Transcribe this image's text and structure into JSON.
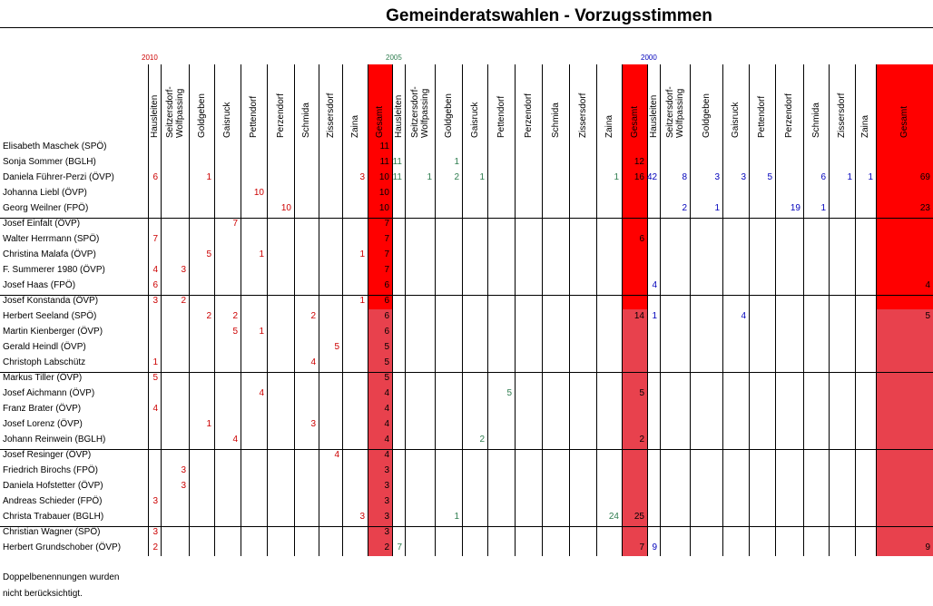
{
  "title": "Gemeinderatswahlen - Vorzugsstimmen",
  "colors": {
    "y2010": "#cc0000",
    "y2005": "#2e7d4f",
    "y2000": "#0000bb",
    "total_dark": "#ff0000",
    "total_light": "#e8414d"
  },
  "blocks": [
    {
      "year": "2010",
      "color_key": "y2010",
      "columns": [
        "Hausleiten",
        "Seitzersdorf-\nWolfpassing",
        "Goldgeben",
        "Gaisruck",
        "Pettendorf",
        "Perzendorf",
        "Schmida",
        "Zissersdorf",
        "Zaina",
        "Gesamt"
      ]
    },
    {
      "year": "2005",
      "color_key": "y2005",
      "columns": [
        "Hausleiten",
        "Seitzersdorf-\nWolfpassing",
        "Goldgeben",
        "Gaisruck",
        "Pettendorf",
        "Perzendorf",
        "Schmida",
        "Zissersdorf",
        "Zaina",
        "Gesamt"
      ]
    },
    {
      "year": "2000",
      "color_key": "y2000",
      "columns": [
        "Hausleiten",
        "Seitzersdorf-\nWolfpassing",
        "Goldgeben",
        "Gaisruck",
        "Pettendorf",
        "Perzendorf",
        "Schmida",
        "Zissersdorf",
        "Zaina",
        "Gesamt"
      ]
    }
  ],
  "rows": [
    {
      "name": "Elisabeth Maschek (SPÖ)",
      "y2010": [
        "",
        "",
        "",
        "",
        "",
        "",
        "",
        "",
        "",
        "11"
      ],
      "y2005": [
        "",
        "",
        "",
        "",
        "",
        "",
        "",
        "",
        "",
        ""
      ],
      "y2000": [
        "",
        "",
        "",
        "",
        "",
        "",
        "",
        "",
        "",
        ""
      ]
    },
    {
      "name": "Sonja Sommer (BGLH)",
      "y2010": [
        "",
        "",
        "",
        "",
        "",
        "",
        "",
        "",
        "",
        "11"
      ],
      "y2005": [
        "11",
        "",
        "1",
        "",
        "",
        "",
        "",
        "",
        "",
        "12"
      ],
      "y2000": [
        "",
        "",
        "",
        "",
        "",
        "",
        "",
        "",
        "",
        ""
      ]
    },
    {
      "name": "Daniela Führer-Perzi (ÖVP)",
      "y2010": [
        "6",
        "",
        "1",
        "",
        "",
        "",
        "",
        "",
        "3",
        "10"
      ],
      "y2005": [
        "11",
        "1",
        "2",
        "1",
        "",
        "",
        "",
        "",
        "1",
        "16"
      ],
      "y2000": [
        "42",
        "8",
        "3",
        "3",
        "5",
        "",
        "6",
        "1",
        "1",
        "69"
      ]
    },
    {
      "name": "Johanna Liebl (ÖVP)",
      "y2010": [
        "",
        "",
        "",
        "",
        "10",
        "",
        "",
        "",
        "",
        "10"
      ],
      "y2005": [
        "",
        "",
        "",
        "",
        "",
        "",
        "",
        "",
        "",
        ""
      ],
      "y2000": [
        "",
        "",
        "",
        "",
        "",
        "",
        "",
        "",
        "",
        ""
      ]
    },
    {
      "name": "Georg Weilner (FPÖ)",
      "y2010": [
        "",
        "",
        "",
        "",
        "",
        "10",
        "",
        "",
        "",
        "10"
      ],
      "y2005": [
        "",
        "",
        "",
        "",
        "",
        "",
        "",
        "",
        "",
        ""
      ],
      "y2000": [
        "",
        "2",
        "1",
        "",
        "",
        "19",
        "1",
        "",
        "",
        "23"
      ]
    },
    {
      "name": "Josef Einfalt (ÖVP)",
      "y2010": [
        "",
        "",
        "",
        "7",
        "",
        "",
        "",
        "",
        "",
        "7"
      ],
      "y2005": [
        "",
        "",
        "",
        "",
        "",
        "",
        "",
        "",
        "",
        ""
      ],
      "y2000": [
        "",
        "",
        "",
        "",
        "",
        "",
        "",
        "",
        "",
        ""
      ]
    },
    {
      "name": "Walter Herrmann (SPÖ)",
      "y2010": [
        "7",
        "",
        "",
        "",
        "",
        "",
        "",
        "",
        "",
        "7"
      ],
      "y2005": [
        "",
        "",
        "",
        "",
        "",
        "",
        "",
        "",
        "",
        "6"
      ],
      "y2000": [
        "",
        "",
        "",
        "",
        "",
        "",
        "",
        "",
        "",
        ""
      ]
    },
    {
      "name": "Christina Malafa (ÖVP)",
      "y2010": [
        "",
        "",
        "5",
        "",
        "1",
        "",
        "",
        "",
        "1",
        "7"
      ],
      "y2005": [
        "",
        "",
        "",
        "",
        "",
        "",
        "",
        "",
        "",
        ""
      ],
      "y2000": [
        "",
        "",
        "",
        "",
        "",
        "",
        "",
        "",
        "",
        ""
      ]
    },
    {
      "name": "F. Summerer 1980 (ÖVP)",
      "y2010": [
        "4",
        "3",
        "",
        "",
        "",
        "",
        "",
        "",
        "",
        "7"
      ],
      "y2005": [
        "",
        "",
        "",
        "",
        "",
        "",
        "",
        "",
        "",
        ""
      ],
      "y2000": [
        "",
        "",
        "",
        "",
        "",
        "",
        "",
        "",
        "",
        ""
      ]
    },
    {
      "name": "Josef Haas (FPÖ)",
      "y2010": [
        "6",
        "",
        "",
        "",
        "",
        "",
        "",
        "",
        "",
        "6"
      ],
      "y2005": [
        "",
        "",
        "",
        "",
        "",
        "",
        "",
        "",
        "",
        ""
      ],
      "y2000": [
        "4",
        "",
        "",
        "",
        "",
        "",
        "",
        "",
        "",
        "4"
      ]
    },
    {
      "name": "Josef Konstanda (ÖVP)",
      "y2010": [
        "3",
        "2",
        "",
        "",
        "",
        "",
        "",
        "",
        "1",
        "6"
      ],
      "y2005": [
        "",
        "",
        "",
        "",
        "",
        "",
        "",
        "",
        "",
        ""
      ],
      "y2000": [
        "",
        "",
        "",
        "",
        "",
        "",
        "",
        "",
        "",
        ""
      ]
    },
    {
      "name": "Herbert Seeland (SPÖ)",
      "y2010": [
        "",
        "",
        "2",
        "2",
        "",
        "",
        "2",
        "",
        "",
        "6"
      ],
      "y2005": [
        "",
        "",
        "",
        "",
        "",
        "",
        "",
        "",
        "",
        "14"
      ],
      "y2000": [
        "1",
        "",
        "",
        "4",
        "",
        "",
        "",
        "",
        "",
        "5"
      ]
    },
    {
      "name": "Martin Kienberger (ÖVP)",
      "y2010": [
        "",
        "",
        "",
        "5",
        "1",
        "",
        "",
        "",
        "",
        "6"
      ],
      "y2005": [
        "",
        "",
        "",
        "",
        "",
        "",
        "",
        "",
        "",
        ""
      ],
      "y2000": [
        "",
        "",
        "",
        "",
        "",
        "",
        "",
        "",
        "",
        ""
      ]
    },
    {
      "name": "Gerald Heindl (ÖVP)",
      "y2010": [
        "",
        "",
        "",
        "",
        "",
        "",
        "",
        "5",
        "",
        "5"
      ],
      "y2005": [
        "",
        "",
        "",
        "",
        "",
        "",
        "",
        "",
        "",
        ""
      ],
      "y2000": [
        "",
        "",
        "",
        "",
        "",
        "",
        "",
        "",
        "",
        ""
      ]
    },
    {
      "name": "Christoph Labschütz",
      "y2010": [
        "1",
        "",
        "",
        "",
        "",
        "",
        "4",
        "",
        "",
        "5"
      ],
      "y2005": [
        "",
        "",
        "",
        "",
        "",
        "",
        "",
        "",
        "",
        ""
      ],
      "y2000": [
        "",
        "",
        "",
        "",
        "",
        "",
        "",
        "",
        "",
        ""
      ]
    },
    {
      "name": "Markus Tiller (ÖVP)",
      "y2010": [
        "5",
        "",
        "",
        "",
        "",
        "",
        "",
        "",
        "",
        "5"
      ],
      "y2005": [
        "",
        "",
        "",
        "",
        "",
        "",
        "",
        "",
        "",
        ""
      ],
      "y2000": [
        "",
        "",
        "",
        "",
        "",
        "",
        "",
        "",
        "",
        ""
      ]
    },
    {
      "name": "Josef Aichmann (ÖVP)",
      "y2010": [
        "",
        "",
        "",
        "",
        "4",
        "",
        "",
        "",
        "",
        "4"
      ],
      "y2005": [
        "",
        "",
        "",
        "",
        "5",
        "",
        "",
        "",
        "",
        "5"
      ],
      "y2000": [
        "",
        "",
        "",
        "",
        "",
        "",
        "",
        "",
        "",
        ""
      ]
    },
    {
      "name": "Franz Brater (ÖVP)",
      "y2010": [
        "4",
        "",
        "",
        "",
        "",
        "",
        "",
        "",
        "",
        "4"
      ],
      "y2005": [
        "",
        "",
        "",
        "",
        "",
        "",
        "",
        "",
        "",
        ""
      ],
      "y2000": [
        "",
        "",
        "",
        "",
        "",
        "",
        "",
        "",
        "",
        ""
      ]
    },
    {
      "name": "Josef Lorenz (ÖVP)",
      "y2010": [
        "",
        "",
        "1",
        "",
        "",
        "",
        "3",
        "",
        "",
        "4"
      ],
      "y2005": [
        "",
        "",
        "",
        "",
        "",
        "",
        "",
        "",
        "",
        ""
      ],
      "y2000": [
        "",
        "",
        "",
        "",
        "",
        "",
        "",
        "",
        "",
        ""
      ]
    },
    {
      "name": "Johann Reinwein (BGLH)",
      "y2010": [
        "",
        "",
        "",
        "4",
        "",
        "",
        "",
        "",
        "",
        "4"
      ],
      "y2005": [
        "",
        "",
        "",
        "2",
        "",
        "",
        "",
        "",
        "",
        "2"
      ],
      "y2000": [
        "",
        "",
        "",
        "",
        "",
        "",
        "",
        "",
        "",
        ""
      ]
    },
    {
      "name": "Josef Resinger (ÖVP)",
      "y2010": [
        "",
        "",
        "",
        "",
        "",
        "",
        "",
        "4",
        "",
        "4"
      ],
      "y2005": [
        "",
        "",
        "",
        "",
        "",
        "",
        "",
        "",
        "",
        ""
      ],
      "y2000": [
        "",
        "",
        "",
        "",
        "",
        "",
        "",
        "",
        "",
        ""
      ]
    },
    {
      "name": "Friedrich Birochs (FPÖ)",
      "y2010": [
        "",
        "3",
        "",
        "",
        "",
        "",
        "",
        "",
        "",
        "3"
      ],
      "y2005": [
        "",
        "",
        "",
        "",
        "",
        "",
        "",
        "",
        "",
        ""
      ],
      "y2000": [
        "",
        "",
        "",
        "",
        "",
        "",
        "",
        "",
        "",
        ""
      ]
    },
    {
      "name": "Daniela Hofstetter (ÖVP)",
      "y2010": [
        "",
        "3",
        "",
        "",
        "",
        "",
        "",
        "",
        "",
        "3"
      ],
      "y2005": [
        "",
        "",
        "",
        "",
        "",
        "",
        "",
        "",
        "",
        ""
      ],
      "y2000": [
        "",
        "",
        "",
        "",
        "",
        "",
        "",
        "",
        "",
        ""
      ]
    },
    {
      "name": "Andreas Schieder (FPÖ)",
      "y2010": [
        "3",
        "",
        "",
        "",
        "",
        "",
        "",
        "",
        "",
        "3"
      ],
      "y2005": [
        "",
        "",
        "",
        "",
        "",
        "",
        "",
        "",
        "",
        ""
      ],
      "y2000": [
        "",
        "",
        "",
        "",
        "",
        "",
        "",
        "",
        "",
        ""
      ]
    },
    {
      "name": "Christa Trabauer (BGLH)",
      "y2010": [
        "",
        "",
        "",
        "",
        "",
        "",
        "",
        "",
        "3",
        "3"
      ],
      "y2005": [
        "",
        "",
        "1",
        "",
        "",
        "",
        "",
        "",
        "24",
        "25"
      ],
      "y2000": [
        "",
        "",
        "",
        "",
        "",
        "",
        "",
        "",
        "",
        ""
      ]
    },
    {
      "name": "Christian Wagner (SPÖ)",
      "y2010": [
        "3",
        "",
        "",
        "",
        "",
        "",
        "",
        "",
        "",
        "3"
      ],
      "y2005": [
        "",
        "",
        "",
        "",
        "",
        "",
        "",
        "",
        "",
        ""
      ],
      "y2000": [
        "",
        "",
        "",
        "",
        "",
        "",
        "",
        "",
        "",
        ""
      ]
    },
    {
      "name": "Herbert Grundschober (ÖVP)",
      "y2010": [
        "2",
        "",
        "",
        "",
        "",
        "",
        "",
        "",
        "",
        "2"
      ],
      "y2005": [
        "7",
        "",
        "",
        "",
        "",
        "",
        "",
        "",
        "",
        "7"
      ],
      "y2000": [
        "9",
        "",
        "",
        "",
        "",
        "",
        "",
        "",
        "",
        "9"
      ]
    }
  ],
  "footnote": {
    "line1": "Doppelbenennungen wurden",
    "line2": "nicht berücksichtigt."
  }
}
